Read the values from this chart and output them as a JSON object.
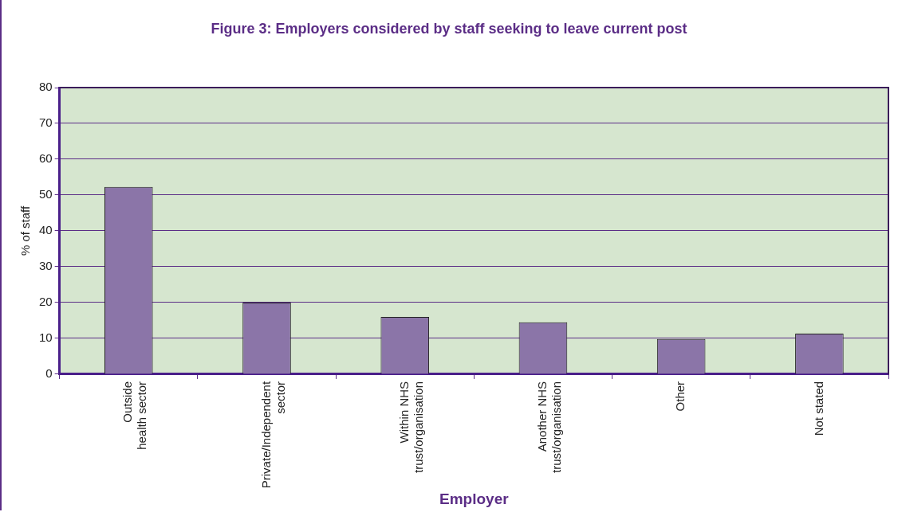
{
  "chart_data": {
    "type": "bar",
    "title": "Figure 3: Employers considered by staff seeking to leave current post",
    "xlabel": "Employer",
    "ylabel": "% of staff",
    "categories": [
      "Outside\nhealth sector",
      "Private/Independent\nsector",
      "Within NHS\ntrust/organisation",
      "Another NHS\ntrust/organisation",
      "Other",
      "Not stated"
    ],
    "values": [
      52.3,
      20,
      16,
      14.5,
      9.8,
      11.3
    ],
    "color": "#8b75a8",
    "ylim": [
      0,
      80
    ],
    "yticks": [
      0,
      10,
      20,
      30,
      40,
      50,
      60,
      70,
      80
    ],
    "grid": "y",
    "legend": false
  }
}
